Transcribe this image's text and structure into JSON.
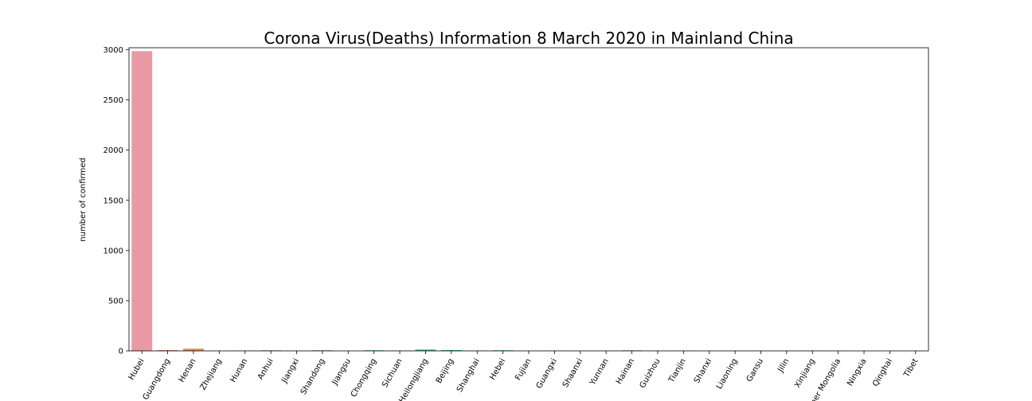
{
  "chart_data": {
    "type": "bar",
    "title": "Corona Virus(Deaths) Information 8 March 2020 in Mainland China",
    "xlabel": "",
    "ylabel": "number of confirmed",
    "ylim": [
      0,
      3000
    ],
    "yticks": [
      0,
      500,
      1000,
      1500,
      2000,
      2500,
      3000
    ],
    "categories": [
      "Hubei",
      "Guangdong",
      "Henan",
      "Zhejiang",
      "Hunan",
      "Anhui",
      "Jiangxi",
      "Shandong",
      "Jiangsu",
      "Chongqing",
      "Sichuan",
      "Heilongjiang",
      "Beijing",
      "Shanghai",
      "Hebei",
      "Fujian",
      "Guangxi",
      "Shaanxi",
      "Yunnan",
      "Hainan",
      "Guizhou",
      "Tianjin",
      "Shanxi",
      "Liaoning",
      "Gansu",
      "Jilin",
      "Xinjiang",
      "Inner Mongolia",
      "Ningxia",
      "Qinghai",
      "Tibet"
    ],
    "values": [
      2986,
      8,
      22,
      1,
      4,
      6,
      1,
      6,
      0,
      6,
      3,
      13,
      8,
      3,
      6,
      1,
      2,
      1,
      2,
      6,
      2,
      3,
      0,
      1,
      2,
      1,
      3,
      1,
      0,
      0,
      0
    ],
    "colors": [
      "#ea9aa4",
      "#e6977e",
      "#db8f5d",
      "#cc9c3c",
      "#b8a03b",
      "#a6a53d",
      "#92a83b",
      "#7aab3c",
      "#3daa5a",
      "#3eaa7a",
      "#3faa8a",
      "#3faa99",
      "#41a9a6",
      "#43a8b1",
      "#46a7bc",
      "#4aa5c9",
      "#53a3d6",
      "#6aa0e2",
      "#8b9ae5",
      "#a793e6",
      "#bd8de5",
      "#cf87dd",
      "#dc82d1",
      "#e47ec3",
      "#e57fb4",
      "#e6829e",
      "#e78591",
      "#e88888",
      "#e98b84",
      "#ea8f86",
      "#ea9490"
    ],
    "grid": false,
    "legend": "none"
  }
}
